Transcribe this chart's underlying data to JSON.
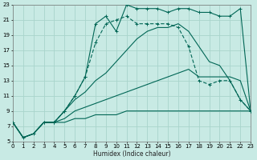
{
  "xlabel": "Humidex (Indice chaleur)",
  "bg_color": "#c8eae4",
  "grid_color": "#a8d4cc",
  "line_color": "#006655",
  "xlim": [
    0,
    23
  ],
  "ylim": [
    5,
    23
  ],
  "xticks": [
    0,
    1,
    2,
    3,
    4,
    5,
    6,
    7,
    8,
    9,
    10,
    11,
    12,
    13,
    14,
    15,
    16,
    17,
    18,
    19,
    20,
    21,
    22,
    23
  ],
  "yticks": [
    5,
    7,
    9,
    11,
    13,
    15,
    17,
    19,
    21,
    23
  ],
  "line_flat1_x": [
    0,
    1,
    2,
    3,
    4,
    5,
    6,
    7,
    8,
    9,
    10,
    11,
    12,
    13,
    14,
    15,
    16,
    17,
    18,
    19,
    20,
    21,
    22,
    23
  ],
  "line_flat1_y": [
    7.5,
    5.5,
    6.0,
    7.5,
    7.5,
    7.5,
    8.0,
    8.0,
    8.5,
    8.5,
    8.5,
    9.0,
    9.0,
    9.0,
    9.0,
    9.0,
    9.0,
    9.0,
    9.0,
    9.0,
    9.0,
    9.0,
    9.0,
    9.0
  ],
  "line_flat2_x": [
    0,
    1,
    2,
    3,
    4,
    5,
    6,
    7,
    8,
    9,
    10,
    11,
    12,
    13,
    14,
    15,
    16,
    17,
    18,
    19,
    20,
    21,
    22,
    23
  ],
  "line_flat2_y": [
    7.5,
    5.5,
    6.0,
    7.5,
    7.5,
    8.0,
    9.0,
    9.5,
    10.0,
    10.5,
    11.0,
    11.5,
    12.0,
    12.5,
    13.0,
    13.5,
    14.0,
    14.5,
    13.5,
    13.5,
    13.5,
    13.5,
    13.0,
    9.0
  ],
  "line_solid_x": [
    0,
    1,
    2,
    3,
    4,
    5,
    6,
    7,
    8,
    9,
    10,
    11,
    12,
    13,
    14,
    15,
    16,
    17,
    18,
    19,
    20,
    21,
    22,
    23
  ],
  "line_solid_y": [
    7.5,
    5.5,
    6.0,
    7.5,
    7.5,
    9.0,
    10.5,
    11.5,
    13.0,
    14.0,
    15.5,
    17.0,
    18.5,
    19.5,
    20.0,
    20.0,
    20.5,
    19.5,
    17.5,
    15.5,
    15.0,
    13.0,
    10.5,
    9.0
  ],
  "line_dotted_x": [
    3,
    4,
    5,
    6,
    7,
    8,
    9,
    10,
    11,
    12,
    13,
    14,
    15,
    16,
    17,
    18,
    19,
    20,
    21,
    22,
    23
  ],
  "line_dotted_y": [
    7.5,
    7.5,
    9.0,
    11.0,
    13.5,
    18.0,
    20.5,
    21.0,
    21.5,
    20.5,
    20.5,
    20.5,
    20.5,
    20.0,
    17.5,
    13.0,
    12.5,
    13.0,
    13.0,
    10.5,
    9.0
  ],
  "line_top_x": [
    0,
    1,
    2,
    3,
    4,
    5,
    6,
    7,
    8,
    9,
    10,
    11,
    12,
    13,
    14,
    15,
    16,
    17,
    18,
    19,
    20,
    21,
    22,
    23
  ],
  "line_top_y": [
    7.5,
    5.5,
    6.0,
    7.5,
    7.5,
    9.0,
    11.0,
    13.5,
    20.5,
    21.5,
    19.5,
    23.0,
    22.5,
    22.5,
    22.5,
    22.0,
    22.5,
    22.5,
    22.0,
    22.0,
    21.5,
    21.5,
    22.5,
    9.0
  ]
}
